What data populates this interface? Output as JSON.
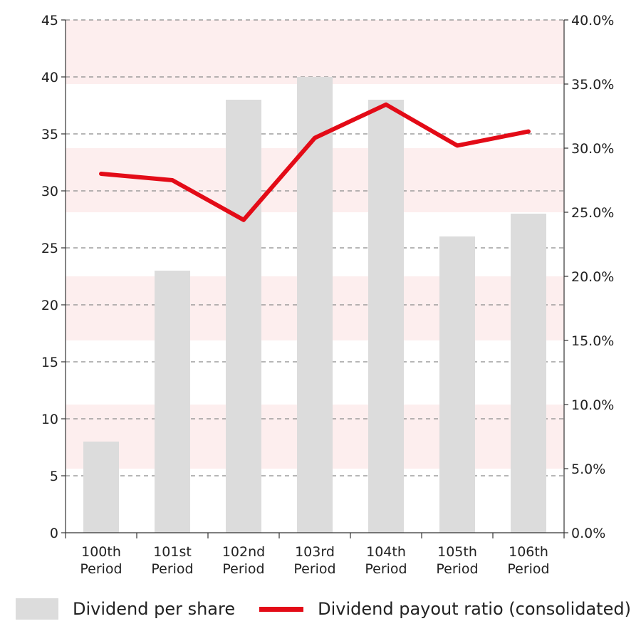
{
  "chart_data": {
    "type": "bar",
    "categories": [
      [
        "100th",
        "Period"
      ],
      [
        "101st",
        "Period"
      ],
      [
        "102nd",
        "Period"
      ],
      [
        "103rd",
        "Period"
      ],
      [
        "104th",
        "Period"
      ],
      [
        "105th",
        "Period"
      ],
      [
        "106th",
        "Period"
      ]
    ],
    "series": [
      {
        "name": "Dividend per share",
        "type": "bar",
        "axis": "left",
        "values": [
          8,
          23,
          38,
          40,
          38,
          26,
          28
        ],
        "color": "#dcdcdc"
      },
      {
        "name": "Dividend payout ratio (consolidated)",
        "type": "line",
        "axis": "right",
        "values": [
          28.0,
          27.5,
          24.4,
          30.8,
          33.4,
          30.2,
          31.3
        ],
        "color": "#e30b17"
      }
    ],
    "y_left": {
      "min": 0,
      "max": 45,
      "ticks": [
        0,
        5,
        10,
        15,
        20,
        25,
        30,
        35,
        40,
        45
      ]
    },
    "y_right": {
      "min": 0,
      "max": 40,
      "ticks": [
        "0.0%",
        "5.0%",
        "10.0%",
        "15.0%",
        "20.0%",
        "25.0%",
        "30.0%",
        "35.0%",
        "40.0%"
      ]
    },
    "band_color": "#fdeeee",
    "grid": true,
    "legend_position": "bottom"
  }
}
